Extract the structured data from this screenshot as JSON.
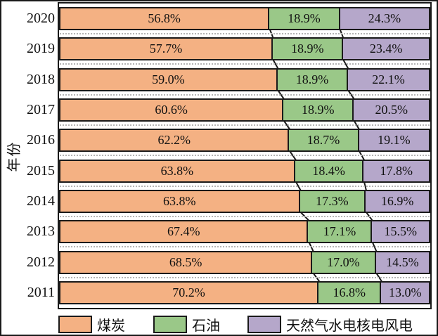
{
  "chart_data": {
    "type": "bar",
    "orientation": "horizontal",
    "stacked": true,
    "title": "",
    "xlabel": "",
    "ylabel": "年份",
    "categories": [
      "2020",
      "2019",
      "2018",
      "2017",
      "2016",
      "2015",
      "2014",
      "2013",
      "2012",
      "2011"
    ],
    "series": [
      {
        "name": "煤炭",
        "color": "#F4B183",
        "values": [
          56.8,
          57.7,
          59.0,
          60.6,
          62.2,
          63.8,
          63.8,
          67.4,
          68.5,
          70.2
        ]
      },
      {
        "name": "石油",
        "color": "#9AC888",
        "values": [
          18.9,
          18.9,
          18.9,
          18.9,
          18.7,
          18.4,
          17.3,
          17.1,
          17.0,
          16.8
        ]
      },
      {
        "name": "天然气水电核电风电",
        "color": "#B5A7CA",
        "values": [
          24.3,
          23.4,
          22.1,
          20.5,
          19.1,
          17.8,
          16.9,
          15.5,
          14.5,
          13.0
        ]
      }
    ],
    "value_labels": [
      [
        "56.8%",
        "18.9%",
        "24.3%"
      ],
      [
        "57.7%",
        "18.9%",
        "23.4%"
      ],
      [
        "59.0%",
        "18.9%",
        "22.1%"
      ],
      [
        "60.6%",
        "18.9%",
        "20.5%"
      ],
      [
        "62.2%",
        "18.7%",
        "19.1%"
      ],
      [
        "63.8%",
        "18.4%",
        "17.8%"
      ],
      [
        "63.8%",
        "17.3%",
        "16.9%"
      ],
      [
        "67.4%",
        "17.1%",
        "15.5%"
      ],
      [
        "68.5%",
        "17.0%",
        "14.5%"
      ],
      [
        "70.2%",
        "16.8%",
        "13.0%"
      ]
    ],
    "xlim": [
      0,
      100
    ],
    "grid": "dotted-row-separators",
    "legend_position": "bottom",
    "frame_color": "#1a1a1a",
    "background_color": "#ffffff"
  }
}
